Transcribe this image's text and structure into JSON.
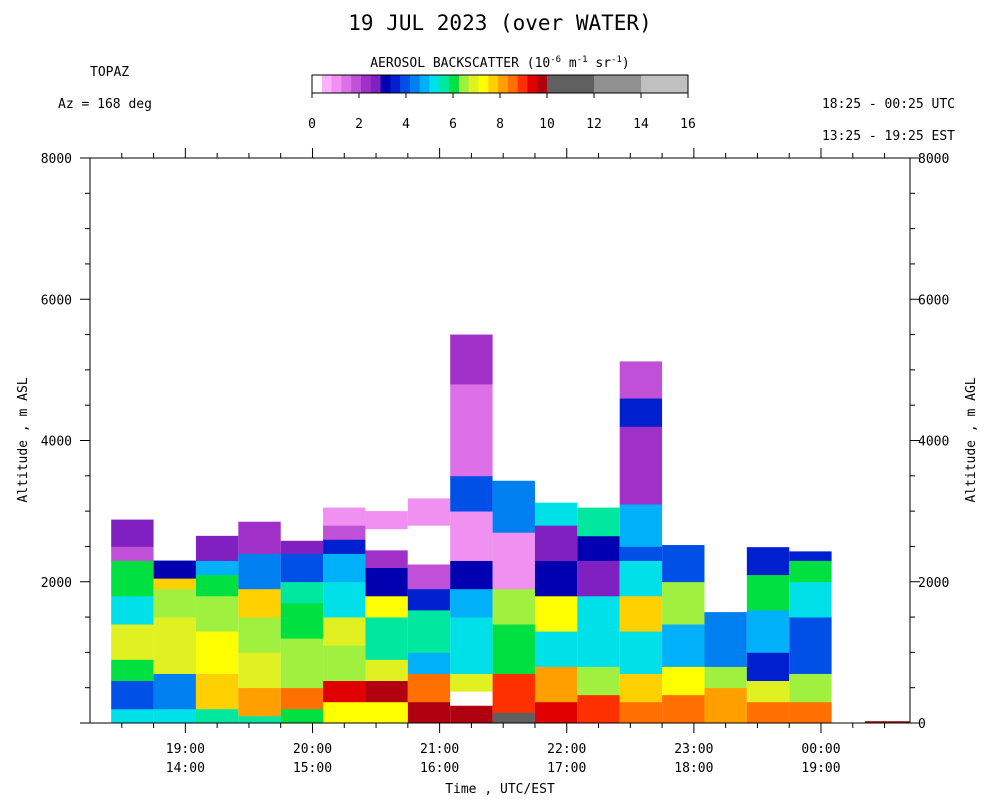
{
  "header": {
    "title": "19 JUL 2023 (over WATER)",
    "site": "TOPAZ",
    "azimuth": "Az = 168 deg",
    "time_range_utc": "18:25 - 00:25 UTC",
    "time_range_est": "13:25 - 19:25 EST"
  },
  "colorbar": {
    "label_main": "AEROSOL BACKSCATTER (10",
    "label_exp1": "-6",
    "label_mid1": " m",
    "label_exp2": "-1",
    "label_mid2": " sr",
    "label_exp3": "-1",
    "label_end": ")",
    "ticks": [
      "0",
      "2",
      "4",
      "6",
      "8",
      "10",
      "12",
      "14",
      "16"
    ],
    "colors": [
      "#ffffff",
      "#ffb0ff",
      "#f090f0",
      "#dd70e8",
      "#c050d8",
      "#a030c8",
      "#8020c0",
      "#0000b0",
      "#0020d0",
      "#0050e8",
      "#0080f0",
      "#00b0f8",
      "#00e0e8",
      "#00e8a0",
      "#00e040",
      "#a0f040",
      "#e0f020",
      "#ffff00",
      "#ffd000",
      "#ffa000",
      "#ff7000",
      "#ff3000",
      "#e00000",
      "#b00010",
      "#606060",
      "#909090",
      "#c0c0c0"
    ]
  },
  "chart_data": {
    "type": "heatmap",
    "title": "19 JUL 2023 (over WATER)",
    "xlabel": "Time , UTC/EST",
    "ylabel_left": "Altitude , m ASL",
    "ylabel_right": "Altitude , m AGL",
    "ylim": [
      0,
      8000
    ],
    "xlim": [
      "18:25",
      "00:25"
    ],
    "y_ticks_left": [
      "8000",
      "6000",
      "4000",
      "2000"
    ],
    "y_ticks_right": [
      "8000",
      "6000",
      "4000",
      "2000",
      "0"
    ],
    "x_ticks": [
      {
        "utc": "19:00",
        "est": "14:00",
        "hours_utc": 19.0
      },
      {
        "utc": "20:00",
        "est": "15:00",
        "hours_utc": 20.0
      },
      {
        "utc": "21:00",
        "est": "16:00",
        "hours_utc": 21.0
      },
      {
        "utc": "22:00",
        "est": "17:00",
        "hours_utc": 22.0
      },
      {
        "utc": "23:00",
        "est": "18:00",
        "hours_utc": 23.0
      },
      {
        "utc": "00:00",
        "est": "19:00",
        "hours_utc": 24.0
      }
    ],
    "profiles": [
      {
        "t0": "18:25",
        "t1": "18:45",
        "top": 2880,
        "layers": [
          [
            0,
            200,
            5.2
          ],
          [
            200,
            600,
            4.0
          ],
          [
            600,
            900,
            6.0
          ],
          [
            900,
            1400,
            6.8
          ],
          [
            1400,
            1800,
            5.4
          ],
          [
            1800,
            2300,
            6.2
          ],
          [
            2300,
            2500,
            1.8
          ],
          [
            2500,
            2880,
            2.6
          ]
        ]
      },
      {
        "t0": "18:45",
        "t1": "19:05",
        "top": 2300,
        "layers": [
          [
            0,
            200,
            5.4
          ],
          [
            200,
            700,
            4.4
          ],
          [
            700,
            1500,
            7.0
          ],
          [
            1500,
            1900,
            6.4
          ],
          [
            1900,
            2050,
            7.8
          ],
          [
            2050,
            2300,
            3.0
          ]
        ]
      },
      {
        "t0": "19:05",
        "t1": "19:25",
        "top": 2650,
        "layers": [
          [
            0,
            200,
            5.8
          ],
          [
            200,
            700,
            7.6
          ],
          [
            700,
            1300,
            7.2
          ],
          [
            1300,
            1800,
            6.6
          ],
          [
            1800,
            2100,
            6.2
          ],
          [
            2100,
            2300,
            4.6
          ],
          [
            2300,
            2650,
            2.8
          ]
        ]
      },
      {
        "t0": "19:25",
        "t1": "19:45",
        "top": 2850,
        "layers": [
          [
            0,
            100,
            5.6
          ],
          [
            100,
            500,
            8.0
          ],
          [
            500,
            1000,
            7.0
          ],
          [
            1000,
            1500,
            6.4
          ],
          [
            1500,
            1900,
            7.6
          ],
          [
            1900,
            2400,
            4.4
          ],
          [
            2400,
            2850,
            2.4
          ]
        ]
      },
      {
        "t0": "19:45",
        "t1": "20:05",
        "top": 2580,
        "layers": [
          [
            0,
            200,
            6.0
          ],
          [
            200,
            500,
            8.6
          ],
          [
            500,
            1200,
            6.6
          ],
          [
            1200,
            1700,
            6.0
          ],
          [
            1700,
            2000,
            5.6
          ],
          [
            2000,
            2400,
            4.0
          ],
          [
            2400,
            2580,
            2.8
          ]
        ]
      },
      {
        "t0": "20:05",
        "t1": "20:25",
        "top": 3050,
        "layers": [
          [
            0,
            300,
            7.4
          ],
          [
            300,
            600,
            9.2
          ],
          [
            600,
            1100,
            6.4
          ],
          [
            1100,
            1500,
            7.0
          ],
          [
            1500,
            2000,
            5.0
          ],
          [
            2000,
            2400,
            4.8
          ],
          [
            2400,
            2600,
            3.6
          ],
          [
            2600,
            2800,
            2.0
          ],
          [
            2800,
            3050,
            1.0
          ]
        ]
      },
      {
        "t0": "20:25",
        "t1": "20:45",
        "top": 3000,
        "layers": [
          [
            0,
            300,
            7.2
          ],
          [
            300,
            600,
            9.6
          ],
          [
            600,
            900,
            6.8
          ],
          [
            900,
            1500,
            5.6
          ],
          [
            1500,
            1800,
            7.4
          ],
          [
            1800,
            2200,
            3.2
          ],
          [
            2200,
            2450,
            2.2
          ],
          [
            2450,
            2750,
            0.0
          ],
          [
            2750,
            3000,
            1.0
          ]
        ]
      },
      {
        "t0": "20:45",
        "t1": "21:05",
        "top": 3180,
        "layers": [
          [
            0,
            300,
            9.6
          ],
          [
            300,
            700,
            8.4
          ],
          [
            700,
            1000,
            4.6
          ],
          [
            1000,
            1600,
            5.8
          ],
          [
            1600,
            1900,
            3.6
          ],
          [
            1900,
            2250,
            1.8
          ],
          [
            2250,
            2800,
            0.0
          ],
          [
            2800,
            3180,
            1.2
          ]
        ]
      },
      {
        "t0": "21:05",
        "t1": "21:25",
        "top": 5500,
        "layers": [
          [
            0,
            250,
            9.8
          ],
          [
            250,
            450,
            0.0
          ],
          [
            450,
            700,
            7.0
          ],
          [
            700,
            1500,
            5.2
          ],
          [
            1500,
            1900,
            4.6
          ],
          [
            1900,
            2300,
            3.0
          ],
          [
            2300,
            3000,
            1.0
          ],
          [
            3000,
            3500,
            3.8
          ],
          [
            3500,
            4800,
            1.6
          ],
          [
            4800,
            5500,
            2.2
          ]
        ]
      },
      {
        "t0": "21:25",
        "t1": "21:45",
        "top": 3430,
        "layers": [
          [
            0,
            150,
            10.4
          ],
          [
            150,
            700,
            9.0
          ],
          [
            700,
            1400,
            6.0
          ],
          [
            1400,
            1900,
            6.6
          ],
          [
            1900,
            2700,
            1.0
          ],
          [
            2700,
            3430,
            4.2
          ]
        ]
      },
      {
        "t0": "21:45",
        "t1": "22:05",
        "top": 3120,
        "layers": [
          [
            0,
            300,
            9.2
          ],
          [
            300,
            800,
            8.2
          ],
          [
            800,
            1300,
            5.2
          ],
          [
            1300,
            1800,
            7.4
          ],
          [
            1800,
            2300,
            3.0
          ],
          [
            2300,
            2800,
            2.6
          ],
          [
            2800,
            3120,
            5.0
          ]
        ]
      },
      {
        "t0": "22:05",
        "t1": "22:25",
        "top": 3050,
        "layers": [
          [
            0,
            400,
            8.8
          ],
          [
            400,
            800,
            6.6
          ],
          [
            800,
            1400,
            5.4
          ],
          [
            1400,
            1800,
            5.0
          ],
          [
            1800,
            2300,
            2.8
          ],
          [
            2300,
            2650,
            3.0
          ],
          [
            2650,
            3050,
            5.6
          ]
        ]
      },
      {
        "t0": "22:25",
        "t1": "22:45",
        "top": 5120,
        "layers": [
          [
            0,
            300,
            8.6
          ],
          [
            300,
            700,
            7.8
          ],
          [
            700,
            1300,
            5.2
          ],
          [
            1300,
            1800,
            7.6
          ],
          [
            1800,
            2300,
            5.0
          ],
          [
            2300,
            2500,
            3.8
          ],
          [
            2500,
            3100,
            4.8
          ],
          [
            3100,
            4200,
            2.4
          ],
          [
            4200,
            4600,
            3.6
          ],
          [
            4600,
            5120,
            2.0
          ]
        ]
      },
      {
        "t0": "22:45",
        "t1": "23:05",
        "top": 2520,
        "layers": [
          [
            0,
            400,
            8.6
          ],
          [
            400,
            800,
            7.2
          ],
          [
            800,
            1400,
            4.8
          ],
          [
            1400,
            2000,
            6.4
          ],
          [
            2000,
            2520,
            3.8
          ]
        ]
      },
      {
        "t0": "23:05",
        "t1": "23:25",
        "top": 1570,
        "layers": [
          [
            0,
            500,
            8.0
          ],
          [
            500,
            800,
            6.4
          ],
          [
            800,
            1570,
            4.4
          ]
        ]
      },
      {
        "t0": "23:25",
        "t1": "23:45",
        "top": 2490,
        "layers": [
          [
            0,
            300,
            8.4
          ],
          [
            300,
            600,
            7.0
          ],
          [
            600,
            1000,
            3.6
          ],
          [
            1000,
            1600,
            4.8
          ],
          [
            1600,
            2100,
            6.2
          ],
          [
            2100,
            2490,
            3.6
          ]
        ]
      },
      {
        "t0": "23:45",
        "t1": "00:05",
        "top": 2430,
        "layers": [
          [
            0,
            300,
            8.6
          ],
          [
            300,
            700,
            6.6
          ],
          [
            700,
            1500,
            3.8
          ],
          [
            1500,
            2000,
            5.4
          ],
          [
            2000,
            2300,
            6.0
          ],
          [
            2300,
            2430,
            3.4
          ]
        ]
      }
    ]
  }
}
